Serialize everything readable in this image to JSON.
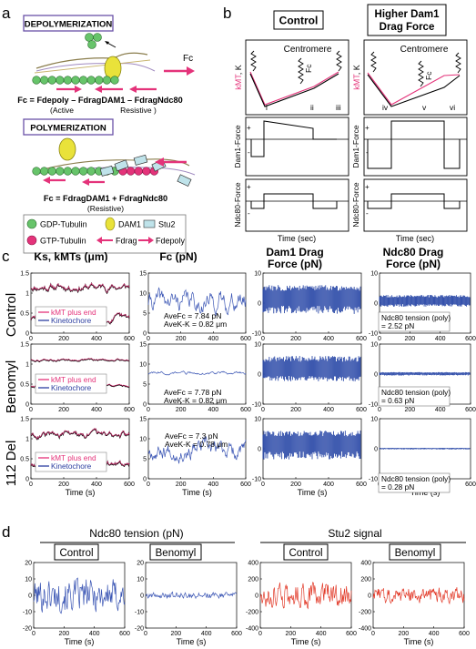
{
  "panel_letters": {
    "a": "a",
    "b": "b",
    "c": "c",
    "d": "d"
  },
  "panel_a": {
    "depoly_box": "DEPOLYMERIZATION",
    "poly_box": "POLYMERIZATION",
    "fc_arrow_label": "Fc",
    "eq_depoly": "Fc = Fdepoly – FdragDAM1 – FdragNdc80",
    "eq_depoly_active": "(Active",
    "eq_depoly_resistive": "Resistive )",
    "eq_poly": "Fc = FdragDAM1 + FdragNdc80",
    "eq_poly_resistive": "(Resistive)",
    "legend": {
      "gdp": "GDP-Tubulin",
      "gtp": "GTP-Tubulin",
      "dam1": "DAM1",
      "stu2": "Stu2",
      "fdrag": "Fdrag",
      "fdepoly": "Fdepoly"
    },
    "colors": {
      "tubulin_green": "#67c46a",
      "gtp_pink": "#e4337a",
      "dam1_yellow": "#e9e23a",
      "stu2_blue": "#bfe3ea",
      "arrow_pink": "#e4337a"
    }
  },
  "panel_b": {
    "control_title": "Control",
    "higher_title_1": "Higher Dam1",
    "higher_title_2": "Drag Force",
    "centromere": "Centromere",
    "fc": "Fc",
    "ylabel_kmt": "kMT, K",
    "ylabel_kmt_pink": "kMT",
    "ylabel_kmt_rest": ", K",
    "ylabel_dam1": "Dam1-Force",
    "ylabel_ndc80": "Ndc80-Force",
    "plus": "+",
    "minus": "-",
    "xlabel": "Time (sec)",
    "roman_control": [
      "i",
      "ii",
      "iii"
    ],
    "roman_higher": [
      "iv",
      "v",
      "vi"
    ]
  },
  "panel_c": {
    "col_titles": {
      "ks": "Ks, kMTs (μm)",
      "fc": "Fc (pN)",
      "dam1_1": "Dam1 Drag",
      "dam1_2": "Force (pN)",
      "ndc_1": "Ndc80 Drag",
      "ndc_2": "Force (pN)"
    },
    "row_labels": [
      "Control",
      "Benomyl",
      "112 Del"
    ],
    "legend_plus_end": "kMT plus end",
    "legend_kinetochore": "Kinetochore",
    "xlabel": "Time (s)",
    "fc_annotations": [
      [
        "AveFc = 7.84 pN",
        "AveK-K = 0.82 μm"
      ],
      [
        "AveFc = 7.78 pN",
        "AveK-K = 0.82 μm"
      ],
      [
        "AveFc = 7.3 pN",
        "AveK-K = 0.78 μm"
      ]
    ],
    "ndc_annotations": [
      [
        "Ndc80 tension (poly)",
        "= 2.52 pN"
      ],
      [
        "Ndc80 tension (poly)",
        "= 0.63 pN"
      ],
      [
        "Ndc80 tension (poly)",
        "= 0.28 pN"
      ]
    ]
  },
  "panel_d": {
    "title_ndc80": "Ndc80 tension (pN)",
    "title_stu2": "Stu2 signal",
    "control": "Control",
    "benomyl": "Benomyl",
    "xlabel": "Time (s)"
  },
  "chart_data": [
    {
      "id": "c_ks_control",
      "type": "line",
      "x_range": [
        0,
        600
      ],
      "ylim": [
        0,
        1.5
      ],
      "yticks": [
        0,
        0.5,
        1,
        1.5
      ],
      "xticks": [
        0,
        200,
        400,
        600
      ],
      "series": [
        {
          "name": "kMT plus end",
          "color": "#e4337a"
        },
        {
          "name": "Kinetochore",
          "color": "#000000"
        }
      ],
      "upper_mean": 1.15,
      "upper_amp": 0.15,
      "lower_mean": 0.35,
      "lower_amp": 0.15
    },
    {
      "id": "c_fc_control",
      "type": "line",
      "x_range": [
        0,
        600
      ],
      "ylim": [
        0,
        15
      ],
      "yticks": [
        0,
        5,
        10,
        15
      ],
      "xticks": [
        0,
        200,
        400,
        600
      ],
      "color": "#3a55b4",
      "mean": 7.84,
      "amp": 3.5
    },
    {
      "id": "c_dam1_control",
      "type": "bar",
      "x_range": [
        0,
        600
      ],
      "ylim": [
        -10,
        10
      ],
      "yticks": [
        -10,
        0,
        10
      ],
      "xticks": [
        0,
        200,
        400,
        600
      ],
      "color": "#2c4aa8",
      "top": 5.5,
      "bottom": -3
    },
    {
      "id": "c_ndc_control",
      "type": "bar",
      "x_range": [
        0,
        600
      ],
      "ylim": [
        -10,
        10
      ],
      "yticks": [
        -10,
        0,
        10
      ],
      "xticks": [
        0,
        200,
        400,
        600
      ],
      "color": "#2c4aa8",
      "top": 2.5,
      "bottom": -1
    },
    {
      "id": "c_ks_benomyl",
      "type": "line",
      "x_range": [
        0,
        600
      ],
      "ylim": [
        0,
        1.5
      ],
      "yticks": [
        0,
        0.5,
        1,
        1.5
      ],
      "xticks": [
        0,
        200,
        400,
        600
      ],
      "upper_mean": 1.1,
      "upper_amp": 0.04,
      "lower_mean": 0.45,
      "lower_amp": 0.04
    },
    {
      "id": "c_fc_benomyl",
      "type": "line",
      "x_range": [
        0,
        600
      ],
      "ylim": [
        0,
        15
      ],
      "yticks": [
        0,
        5,
        10,
        15
      ],
      "xticks": [
        0,
        200,
        400,
        600
      ],
      "mean": 7.78,
      "amp": 0.5
    },
    {
      "id": "c_dam1_benomyl",
      "type": "bar",
      "x_range": [
        0,
        600
      ],
      "ylim": [
        -10,
        10
      ],
      "yticks": [
        -10,
        0,
        10
      ],
      "xticks": [
        0,
        200,
        400,
        600
      ],
      "top": 5.5,
      "bottom": -2
    },
    {
      "id": "c_ndc_benomyl",
      "type": "bar",
      "x_range": [
        0,
        600
      ],
      "ylim": [
        -10,
        10
      ],
      "yticks": [
        -10,
        0,
        10
      ],
      "xticks": [
        0,
        200,
        400,
        600
      ],
      "top": 0.6,
      "bottom": -0.4
    },
    {
      "id": "c_ks_112del",
      "type": "line",
      "x_range": [
        0,
        600
      ],
      "ylim": [
        0,
        1.5
      ],
      "yticks": [
        0,
        0.5,
        1,
        1.5
      ],
      "xticks": [
        0,
        200,
        400,
        600
      ],
      "upper_mean": 1.1,
      "upper_amp": 0.15,
      "lower_mean": 0.35,
      "lower_amp": 0.15
    },
    {
      "id": "c_fc_112del",
      "type": "line",
      "x_range": [
        0,
        600
      ],
      "ylim": [
        0,
        15
      ],
      "yticks": [
        0,
        5,
        10,
        15
      ],
      "xticks": [
        0,
        200,
        400,
        600
      ],
      "mean": 7.3,
      "amp": 3.5
    },
    {
      "id": "c_dam1_112del",
      "type": "bar",
      "x_range": [
        0,
        600
      ],
      "ylim": [
        -10,
        10
      ],
      "yticks": [
        -10,
        0,
        10
      ],
      "xticks": [
        0,
        200,
        400,
        600
      ],
      "top": 5.5,
      "bottom": -3
    },
    {
      "id": "c_ndc_112del",
      "type": "bar",
      "x_range": [
        0,
        600
      ],
      "ylim": [
        -10,
        10
      ],
      "yticks": [
        -10,
        0,
        10
      ],
      "xticks": [
        0,
        200,
        400,
        600
      ],
      "top": 0.28,
      "bottom": -0.2
    },
    {
      "id": "d_ndc_control",
      "type": "line",
      "x_range": [
        0,
        600
      ],
      "ylim": [
        -20,
        20
      ],
      "yticks": [
        -20,
        -10,
        0,
        10,
        20
      ],
      "xticks": [
        0,
        200,
        400,
        600
      ],
      "color": "#3a55b4",
      "amp": 11
    },
    {
      "id": "d_ndc_benomyl",
      "type": "line",
      "x_range": [
        0,
        600
      ],
      "ylim": [
        -20,
        20
      ],
      "yticks": [
        -20,
        -10,
        0,
        10,
        20
      ],
      "xticks": [
        0,
        200,
        400,
        600
      ],
      "color": "#3a55b4",
      "amp": 2
    },
    {
      "id": "d_stu2_control",
      "type": "line",
      "x_range": [
        0,
        600
      ],
      "ylim": [
        -400,
        400
      ],
      "yticks": [
        -400,
        -200,
        0,
        200,
        400
      ],
      "xticks": [
        0,
        200,
        400,
        600
      ],
      "color": "#e23b2a",
      "amp": 160
    },
    {
      "id": "d_stu2_benomyl",
      "type": "line",
      "x_range": [
        0,
        600
      ],
      "ylim": [
        -400,
        400
      ],
      "yticks": [
        -400,
        -200,
        0,
        200,
        400
      ],
      "xticks": [
        0,
        200,
        400,
        600
      ],
      "color": "#e23b2a",
      "amp": 100
    }
  ]
}
